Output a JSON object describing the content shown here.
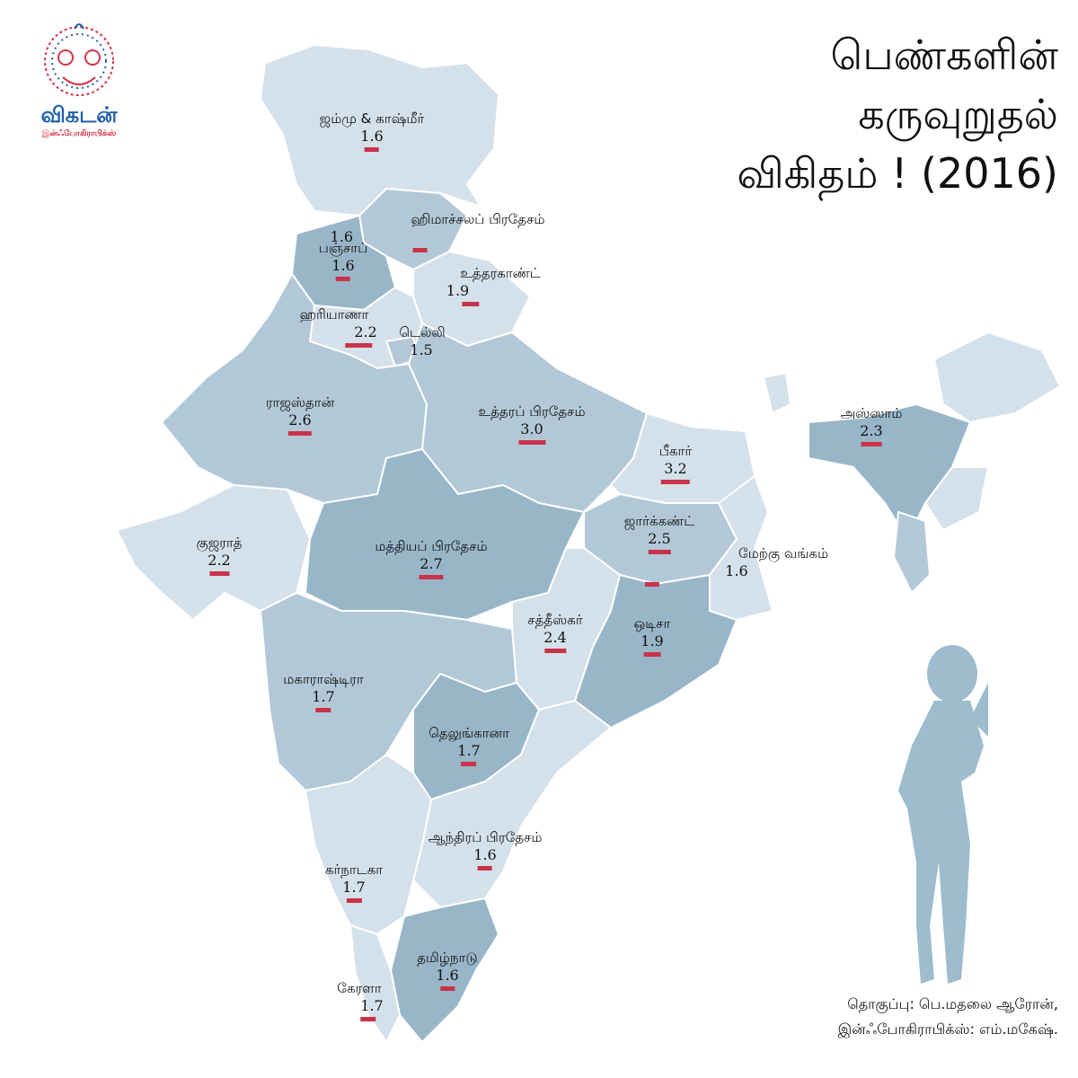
{
  "title": {
    "line1": "பெண்களின்",
    "line2": "கருவுறுதல்",
    "line3": "விகிதம் ! (2016)"
  },
  "logo": {
    "brand": "விகடன்",
    "sub": "இன்ஃபோகிராபிக்ஸ்"
  },
  "colors": {
    "light": "#d4e1ea",
    "mid": "#b2c8d7",
    "dark": "#98b6c8",
    "bar": "#c9334a",
    "silhouette": "#9dbccd"
  },
  "states": [
    {
      "name": "ஜம்மு & காஷ்மீர்",
      "value": 1.6
    },
    {
      "name": "ஹிமாச்சலப் பிரதேசம்",
      "value": 1.6
    },
    {
      "name": "பஞ்சாப்",
      "value": 1.6
    },
    {
      "name": "உத்தரகாண்ட்",
      "value": 1.9
    },
    {
      "name": "ஹரியாணா",
      "value": 2.2
    },
    {
      "name": "டெல்லி",
      "value": 1.5
    },
    {
      "name": "ராஜஸ்தான்",
      "value": 2.6
    },
    {
      "name": "உத்தரப் பிரதேசம்",
      "value": 3.0
    },
    {
      "name": "பீகார்",
      "value": 3.2
    },
    {
      "name": "அஸ்ஸாம்",
      "value": 2.3
    },
    {
      "name": "குஜராத்",
      "value": 2.2
    },
    {
      "name": "மத்தியப் பிரதேசம்",
      "value": 2.7
    },
    {
      "name": "ஜார்க்கண்ட்",
      "value": 2.5
    },
    {
      "name": "மேற்கு வங்கம்",
      "value": 1.6
    },
    {
      "name": "சத்தீஸ்கர்",
      "value": 2.4
    },
    {
      "name": "ஒடிசா",
      "value": 1.9
    },
    {
      "name": "மகாராஷ்டிரா",
      "value": 1.7
    },
    {
      "name": "தெலுங்கானா",
      "value": 1.7
    },
    {
      "name": "ஆந்திரப் பிரதேசம்",
      "value": 1.6
    },
    {
      "name": "கர்நாடகா",
      "value": 1.7
    },
    {
      "name": "தமிழ்நாடு",
      "value": 1.6
    },
    {
      "name": "கேரளா",
      "value": 1.7
    }
  ],
  "credit": {
    "line1": "தொகுப்பு: பெ.மதலை ஆரோன்,",
    "line2": "இன்ஃபோகிராபிக்ஸ்: எம்.மகேஷ்."
  }
}
